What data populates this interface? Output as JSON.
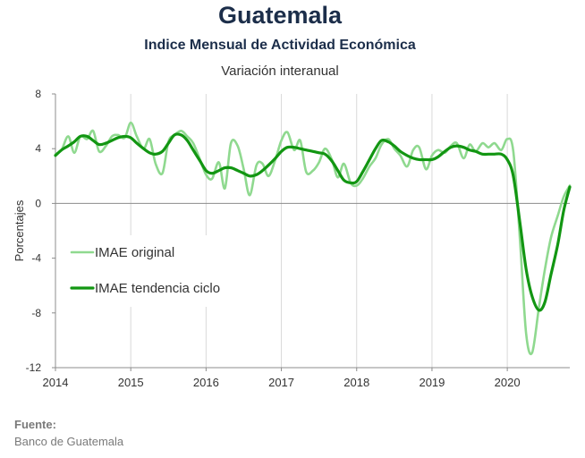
{
  "chart_data": {
    "type": "line",
    "title": "Guatemala",
    "subtitle": "Indice Mensual de  Actividad Económica",
    "subtitle2": "Variación interanual",
    "ylabel": "Porcentajes",
    "xlabel": "",
    "ylim": [
      -12,
      8
    ],
    "xlim": [
      2014,
      2020.83
    ],
    "y_ticks": [
      -12,
      -8,
      -4,
      0,
      4,
      8
    ],
    "x_ticks": [
      2014,
      2015,
      2016,
      2017,
      2018,
      2019,
      2020
    ],
    "y_tick_labels": [
      "-12",
      "-8",
      "-4",
      "0",
      "4",
      "8"
    ],
    "x_tick_labels": [
      "2014",
      "2015",
      "2016",
      "2017",
      "2018",
      "2019",
      "2020"
    ],
    "grid": "vertical",
    "legend_position": "left-middle",
    "series": [
      {
        "name": "IMAE original",
        "color": "#8fd98f",
        "x": [
          2014.0,
          2014.08,
          2014.17,
          2014.25,
          2014.33,
          2014.42,
          2014.5,
          2014.58,
          2014.67,
          2014.75,
          2014.83,
          2014.92,
          2015.0,
          2015.08,
          2015.17,
          2015.25,
          2015.33,
          2015.42,
          2015.5,
          2015.58,
          2015.67,
          2015.75,
          2015.83,
          2015.92,
          2016.0,
          2016.08,
          2016.17,
          2016.25,
          2016.33,
          2016.42,
          2016.5,
          2016.58,
          2016.67,
          2016.75,
          2016.83,
          2016.92,
          2017.0,
          2017.08,
          2017.17,
          2017.25,
          2017.33,
          2017.42,
          2017.5,
          2017.58,
          2017.67,
          2017.75,
          2017.83,
          2017.92,
          2018.0,
          2018.08,
          2018.17,
          2018.25,
          2018.33,
          2018.42,
          2018.5,
          2018.58,
          2018.67,
          2018.75,
          2018.83,
          2018.92,
          2019.0,
          2019.08,
          2019.17,
          2019.25,
          2019.33,
          2019.42,
          2019.5,
          2019.58,
          2019.67,
          2019.75,
          2019.83,
          2019.92,
          2020.0,
          2020.08,
          2020.17,
          2020.25,
          2020.33,
          2020.42,
          2020.5,
          2020.58,
          2020.67,
          2020.75,
          2020.83
        ],
        "values": [
          3.6,
          3.9,
          4.9,
          3.7,
          4.9,
          4.7,
          5.3,
          3.8,
          4.2,
          4.9,
          5.0,
          4.8,
          5.9,
          4.9,
          4.0,
          4.7,
          2.9,
          2.2,
          4.5,
          5.0,
          5.3,
          4.9,
          4.4,
          3.2,
          2.1,
          1.8,
          3.0,
          1.1,
          4.4,
          4.2,
          2.5,
          0.6,
          2.8,
          2.9,
          2.0,
          3.2,
          4.6,
          5.2,
          3.9,
          4.6,
          2.3,
          2.4,
          3.0,
          4.0,
          3.2,
          1.9,
          2.9,
          1.5,
          1.3,
          1.8,
          2.7,
          3.3,
          4.3,
          4.7,
          4.0,
          3.5,
          2.7,
          3.9,
          4.1,
          2.5,
          3.5,
          3.9,
          3.7,
          4.2,
          4.4,
          3.3,
          4.3,
          3.8,
          4.4,
          4.1,
          4.4,
          3.9,
          4.7,
          3.8,
          -2.8,
          -9.5,
          -10.9,
          -7.6,
          -4.8,
          -2.5,
          -0.9,
          0.5,
          1.3
        ]
      },
      {
        "name": "IMAE tendencia ciclo",
        "color": "#129612",
        "x": [
          2014.0,
          2014.08,
          2014.17,
          2014.25,
          2014.33,
          2014.42,
          2014.5,
          2014.58,
          2014.67,
          2014.75,
          2014.83,
          2014.92,
          2015.0,
          2015.08,
          2015.17,
          2015.25,
          2015.33,
          2015.42,
          2015.5,
          2015.58,
          2015.67,
          2015.75,
          2015.83,
          2015.92,
          2016.0,
          2016.08,
          2016.17,
          2016.25,
          2016.33,
          2016.42,
          2016.5,
          2016.58,
          2016.67,
          2016.75,
          2016.83,
          2016.92,
          2017.0,
          2017.08,
          2017.17,
          2017.25,
          2017.33,
          2017.42,
          2017.5,
          2017.58,
          2017.67,
          2017.75,
          2017.83,
          2017.92,
          2018.0,
          2018.08,
          2018.17,
          2018.25,
          2018.33,
          2018.42,
          2018.5,
          2018.58,
          2018.67,
          2018.75,
          2018.83,
          2018.92,
          2019.0,
          2019.08,
          2019.17,
          2019.25,
          2019.33,
          2019.42,
          2019.5,
          2019.58,
          2019.67,
          2019.75,
          2019.83,
          2019.92,
          2020.0,
          2020.08,
          2020.17,
          2020.25,
          2020.33,
          2020.42,
          2020.5,
          2020.58,
          2020.67,
          2020.75,
          2020.83
        ],
        "values": [
          3.5,
          3.9,
          4.2,
          4.5,
          4.9,
          4.9,
          4.6,
          4.3,
          4.4,
          4.6,
          4.8,
          4.9,
          4.8,
          4.4,
          4.0,
          3.7,
          3.6,
          3.8,
          4.4,
          5.0,
          5.0,
          4.6,
          3.9,
          3.1,
          2.4,
          2.2,
          2.4,
          2.6,
          2.6,
          2.4,
          2.2,
          2.0,
          2.1,
          2.4,
          2.8,
          3.3,
          3.8,
          4.1,
          4.1,
          4.0,
          3.9,
          3.8,
          3.7,
          3.6,
          3.1,
          2.4,
          1.7,
          1.5,
          1.6,
          2.3,
          3.2,
          4.0,
          4.6,
          4.5,
          4.2,
          3.8,
          3.5,
          3.3,
          3.2,
          3.2,
          3.2,
          3.4,
          3.8,
          4.1,
          4.2,
          4.1,
          3.9,
          3.8,
          3.6,
          3.6,
          3.6,
          3.6,
          3.2,
          2.0,
          -1.5,
          -4.8,
          -6.8,
          -7.8,
          -7.2,
          -5.2,
          -3.0,
          -0.5,
          1.2
        ]
      }
    ]
  },
  "source": {
    "label": "Fuente:",
    "text": "Banco de Guatemala"
  }
}
